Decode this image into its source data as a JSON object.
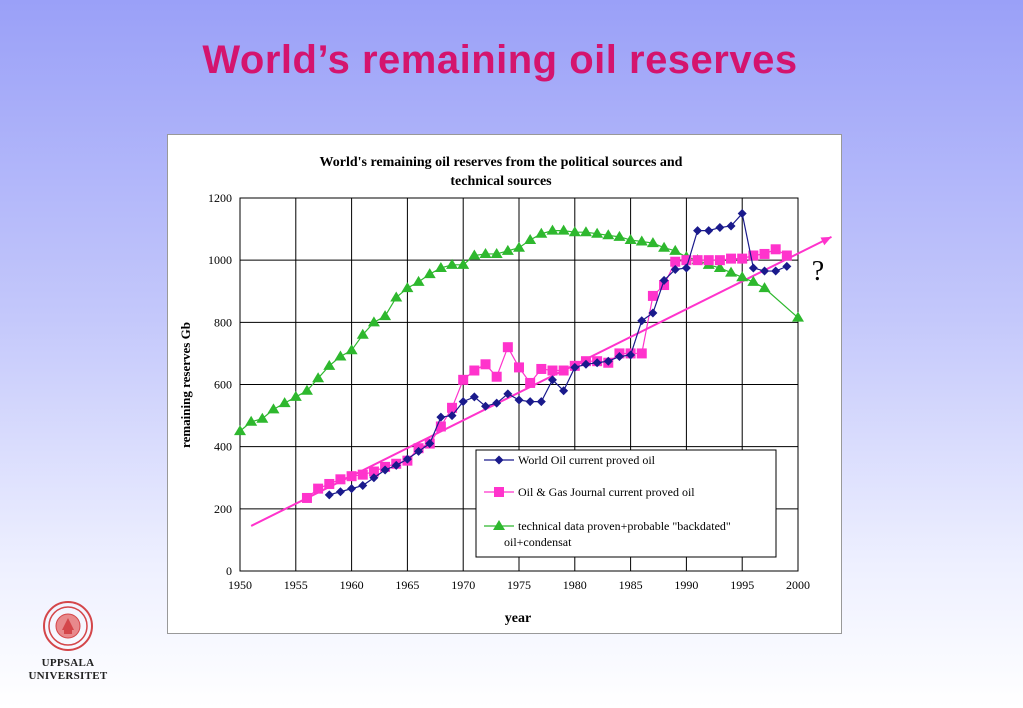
{
  "slide": {
    "title": "World’s remaining oil reserves"
  },
  "logo": {
    "line1": "UPPSALA",
    "line2": "UNIVERSITET",
    "seal_color": "#d4464a"
  },
  "chart_data": {
    "type": "line",
    "title_line1": "World's remaining oil reserves from the political sources and",
    "title_line2": "technical sources",
    "xlabel": "year",
    "ylabel": "remaining reserves Gb",
    "xlim": [
      1950,
      2000
    ],
    "ylim": [
      0,
      1200
    ],
    "xticks": [
      1950,
      1955,
      1960,
      1965,
      1970,
      1975,
      1980,
      1985,
      1990,
      1995,
      2000
    ],
    "yticks": [
      0,
      200,
      400,
      600,
      800,
      1000,
      1200
    ],
    "grid": true,
    "legend_position": "bottom-right",
    "annotation": "?",
    "series": [
      {
        "name": "World Oil current proved oil",
        "color": "#1a1a8c",
        "marker": "diamond",
        "x": [
          1958,
          1959,
          1960,
          1961,
          1962,
          1963,
          1964,
          1965,
          1966,
          1967,
          1968,
          1969,
          1970,
          1971,
          1972,
          1973,
          1974,
          1975,
          1976,
          1977,
          1978,
          1979,
          1980,
          1981,
          1982,
          1983,
          1984,
          1985,
          1986,
          1987,
          1988,
          1989,
          1990,
          1991,
          1992,
          1993,
          1994,
          1995,
          1996,
          1997,
          1998,
          1999
        ],
        "y": [
          245,
          255,
          265,
          275,
          300,
          325,
          340,
          360,
          385,
          410,
          495,
          500,
          545,
          560,
          530,
          540,
          570,
          550,
          545,
          545,
          615,
          580,
          655,
          665,
          670,
          675,
          690,
          695,
          805,
          830,
          935,
          970,
          975,
          1095,
          1095,
          1105,
          1110,
          1150,
          975,
          965,
          965,
          980
        ]
      },
      {
        "name": "Oil & Gas Journal current proved oil",
        "color": "#ff33cc",
        "marker": "square",
        "x": [
          1956,
          1957,
          1958,
          1959,
          1960,
          1961,
          1962,
          1963,
          1964,
          1965,
          1966,
          1967,
          1968,
          1969,
          1970,
          1971,
          1972,
          1973,
          1974,
          1975,
          1976,
          1977,
          1978,
          1979,
          1980,
          1981,
          1982,
          1983,
          1984,
          1985,
          1986,
          1987,
          1988,
          1989,
          1990,
          1991,
          1992,
          1993,
          1994,
          1995,
          1996,
          1997,
          1998,
          1999
        ],
        "y": [
          235,
          265,
          280,
          295,
          305,
          310,
          320,
          335,
          345,
          355,
          395,
          410,
          465,
          525,
          615,
          645,
          665,
          625,
          720,
          655,
          605,
          650,
          645,
          645,
          660,
          675,
          675,
          670,
          700,
          700,
          700,
          885,
          920,
          995,
          1000,
          1000,
          1000,
          1000,
          1005,
          1005,
          1015,
          1020,
          1035,
          1015
        ]
      },
      {
        "name": "technical data proven+probable \"backdated\" oil+condensat",
        "legend_line1": "technical data proven+probable \"backdated\"",
        "legend_line2": "oil+condensat",
        "color": "#2eb82e",
        "marker": "triangle",
        "x": [
          1950,
          1951,
          1952,
          1953,
          1954,
          1955,
          1956,
          1957,
          1958,
          1959,
          1960,
          1961,
          1962,
          1963,
          1964,
          1965,
          1966,
          1967,
          1968,
          1969,
          1970,
          1971,
          1972,
          1973,
          1974,
          1975,
          1976,
          1977,
          1978,
          1979,
          1980,
          1981,
          1982,
          1983,
          1984,
          1985,
          1986,
          1987,
          1988,
          1989,
          1990,
          1991,
          1992,
          1993,
          1994,
          1995,
          1996,
          1997,
          2000
        ],
        "y": [
          450,
          480,
          490,
          520,
          540,
          560,
          580,
          620,
          660,
          690,
          710,
          760,
          800,
          820,
          880,
          910,
          930,
          955,
          975,
          985,
          985,
          1015,
          1020,
          1020,
          1030,
          1040,
          1065,
          1085,
          1095,
          1095,
          1090,
          1090,
          1085,
          1080,
          1075,
          1065,
          1060,
          1055,
          1040,
          1030,
          1010,
          1000,
          985,
          975,
          960,
          945,
          930,
          910,
          815
        ]
      }
    ],
    "trend_line": {
      "color": "#ff33cc",
      "x": [
        1951,
        2003
      ],
      "y": [
        145,
        1075
      ]
    }
  }
}
